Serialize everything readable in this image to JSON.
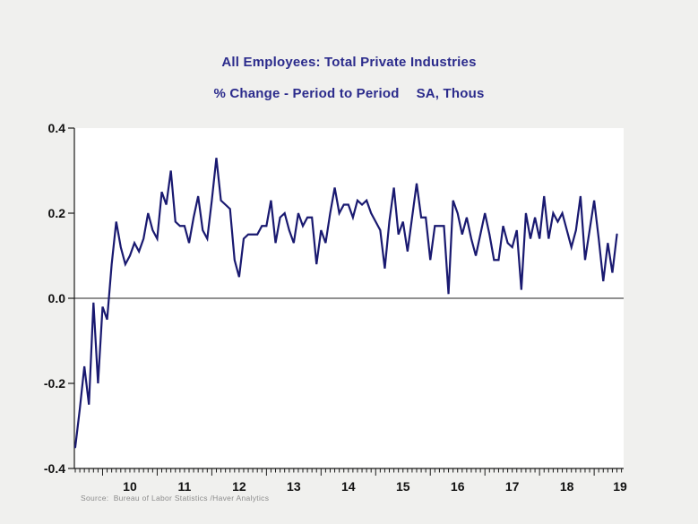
{
  "colors": {
    "background": "#f0f0ee",
    "plot_background": "#ffffff",
    "title": "#2b2b8c",
    "line": "#191970",
    "axis": "#1a1a1a",
    "zero_line": "#4d4d4d",
    "tick_label": "#111111",
    "source": "#8c8c8c"
  },
  "header": {
    "title": "All Employees: Total Private Industries",
    "subtitle": "% Change - Period to Period",
    "units": "SA, Thous"
  },
  "source_note": "Source:  Bureau of Labor Statistics /Haver Analytics",
  "chart_data": {
    "type": "line",
    "title": "All Employees: Total Private Industries",
    "subtitle": "% Change - Period to Period",
    "units": "SA, Thous",
    "frequency": "monthly",
    "start": "2009-07",
    "end": "2019-06",
    "ylim": [
      -0.4,
      0.4
    ],
    "y_tick_values": [
      0.4,
      0.2,
      0.0,
      -0.2,
      -0.4
    ],
    "y_tick_labels": [
      "0.4",
      "0.2",
      "0.0",
      "-0.2",
      "-0.4"
    ],
    "x_tick_labels": [
      "10",
      "11",
      "12",
      "13",
      "14",
      "15",
      "16",
      "17",
      "18",
      "19"
    ],
    "grid": false,
    "legend": "none",
    "zero_line": true,
    "series": [
      {
        "name": "All Employees: Total Private Industries (% change, period to period, SA)",
        "values": [
          -0.35,
          -0.26,
          -0.16,
          -0.25,
          -0.01,
          -0.2,
          -0.02,
          -0.05,
          0.08,
          0.18,
          0.12,
          0.08,
          0.1,
          0.13,
          0.11,
          0.14,
          0.2,
          0.16,
          0.14,
          0.25,
          0.22,
          0.3,
          0.18,
          0.17,
          0.17,
          0.13,
          0.19,
          0.24,
          0.16,
          0.14,
          0.23,
          0.33,
          0.23,
          0.22,
          0.21,
          0.09,
          0.05,
          0.14,
          0.15,
          0.15,
          0.15,
          0.17,
          0.17,
          0.23,
          0.13,
          0.19,
          0.2,
          0.16,
          0.13,
          0.2,
          0.17,
          0.19,
          0.19,
          0.08,
          0.16,
          0.13,
          0.2,
          0.26,
          0.2,
          0.22,
          0.22,
          0.19,
          0.23,
          0.22,
          0.23,
          0.2,
          0.18,
          0.16,
          0.07,
          0.18,
          0.26,
          0.15,
          0.18,
          0.11,
          0.19,
          0.27,
          0.19,
          0.19,
          0.09,
          0.17,
          0.17,
          0.17,
          0.01,
          0.23,
          0.2,
          0.15,
          0.19,
          0.14,
          0.1,
          0.15,
          0.2,
          0.15,
          0.09,
          0.09,
          0.17,
          0.13,
          0.12,
          0.16,
          0.02,
          0.2,
          0.14,
          0.19,
          0.14,
          0.24,
          0.14,
          0.2,
          0.18,
          0.2,
          0.16,
          0.12,
          0.16,
          0.24,
          0.09,
          0.16,
          0.23,
          0.14,
          0.04,
          0.13,
          0.06,
          0.15
        ]
      }
    ]
  }
}
